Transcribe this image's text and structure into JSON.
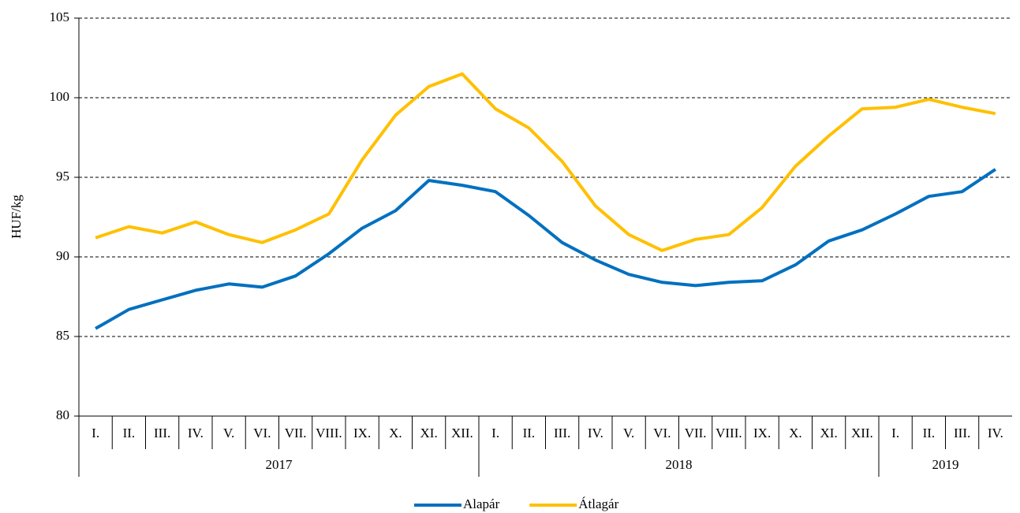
{
  "chart_data": {
    "type": "line",
    "y_label": "HUF/kg",
    "categories": [
      "I.",
      "II.",
      "III.",
      "IV.",
      "V.",
      "VI.",
      "VII.",
      "VIII.",
      "IX.",
      "X.",
      "XI.",
      "XII.",
      "I.",
      "II.",
      "III.",
      "IV.",
      "V.",
      "VI.",
      "VII.",
      "VIII.",
      "IX.",
      "X.",
      "XI.",
      "XII.",
      "I.",
      "II.",
      "III.",
      "IV."
    ],
    "category_groups": [
      "2017",
      "2018",
      "2019"
    ],
    "series": [
      {
        "name": "Alapár",
        "color": "#0070c0",
        "values": [
          85.5,
          86.7,
          87.3,
          87.9,
          88.3,
          88.1,
          88.8,
          90.2,
          91.8,
          92.9,
          94.8,
          94.5,
          94.1,
          92.6,
          90.9,
          89.8,
          88.9,
          88.4,
          88.2,
          88.4,
          88.5,
          89.5,
          91.0,
          91.7,
          92.7,
          93.8,
          94.1,
          95.5
        ]
      },
      {
        "name": "Átlagár",
        "color": "#ffc000",
        "values": [
          91.2,
          91.9,
          91.5,
          92.2,
          91.4,
          90.9,
          91.7,
          92.7,
          96.1,
          98.9,
          100.7,
          101.5,
          99.3,
          98.1,
          96.0,
          93.2,
          91.4,
          90.4,
          91.1,
          91.4,
          93.1,
          95.7,
          97.6,
          99.3,
          99.4,
          99.9,
          99.4,
          99.0
        ]
      }
    ],
    "ylim": [
      80,
      105
    ],
    "yticks": [
      80,
      85,
      90,
      95,
      100,
      105
    ],
    "grid": true,
    "legend": "bottom"
  }
}
